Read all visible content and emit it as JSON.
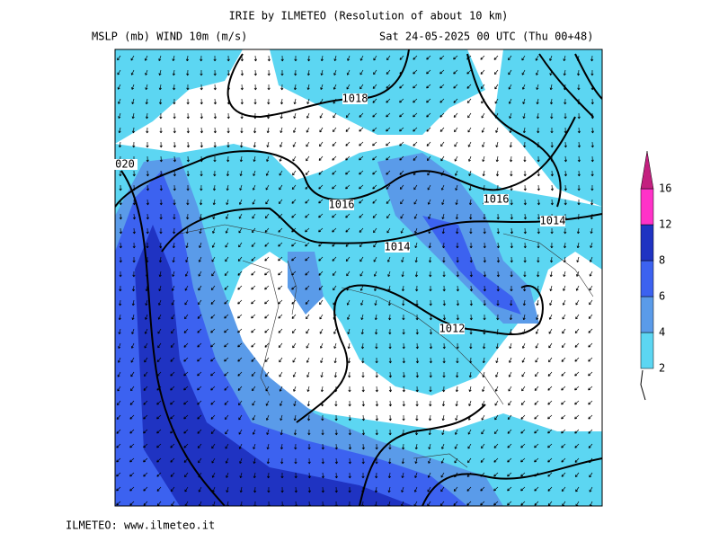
{
  "header": {
    "title": "IRIE by ILMETEO (Resolution of about 10 km)",
    "left": "MSLP (mb)  WIND 10m (m/s)",
    "right": "Sat 24-05-2025 00 UTC (Thu 00+48)"
  },
  "footer": "ILMETEO: www.ilmeteo.it",
  "colorbar": {
    "levels": [
      2,
      4,
      6,
      8,
      12,
      16
    ],
    "colors": [
      "#5cd6f2",
      "#5a9be9",
      "#3c62f0",
      "#1f33c2",
      "#ff32c8",
      "#c3207f"
    ]
  },
  "isobar_labels": [
    "1018",
    "1016",
    "1016",
    "1014",
    "1014",
    "1012",
    "020"
  ]
}
